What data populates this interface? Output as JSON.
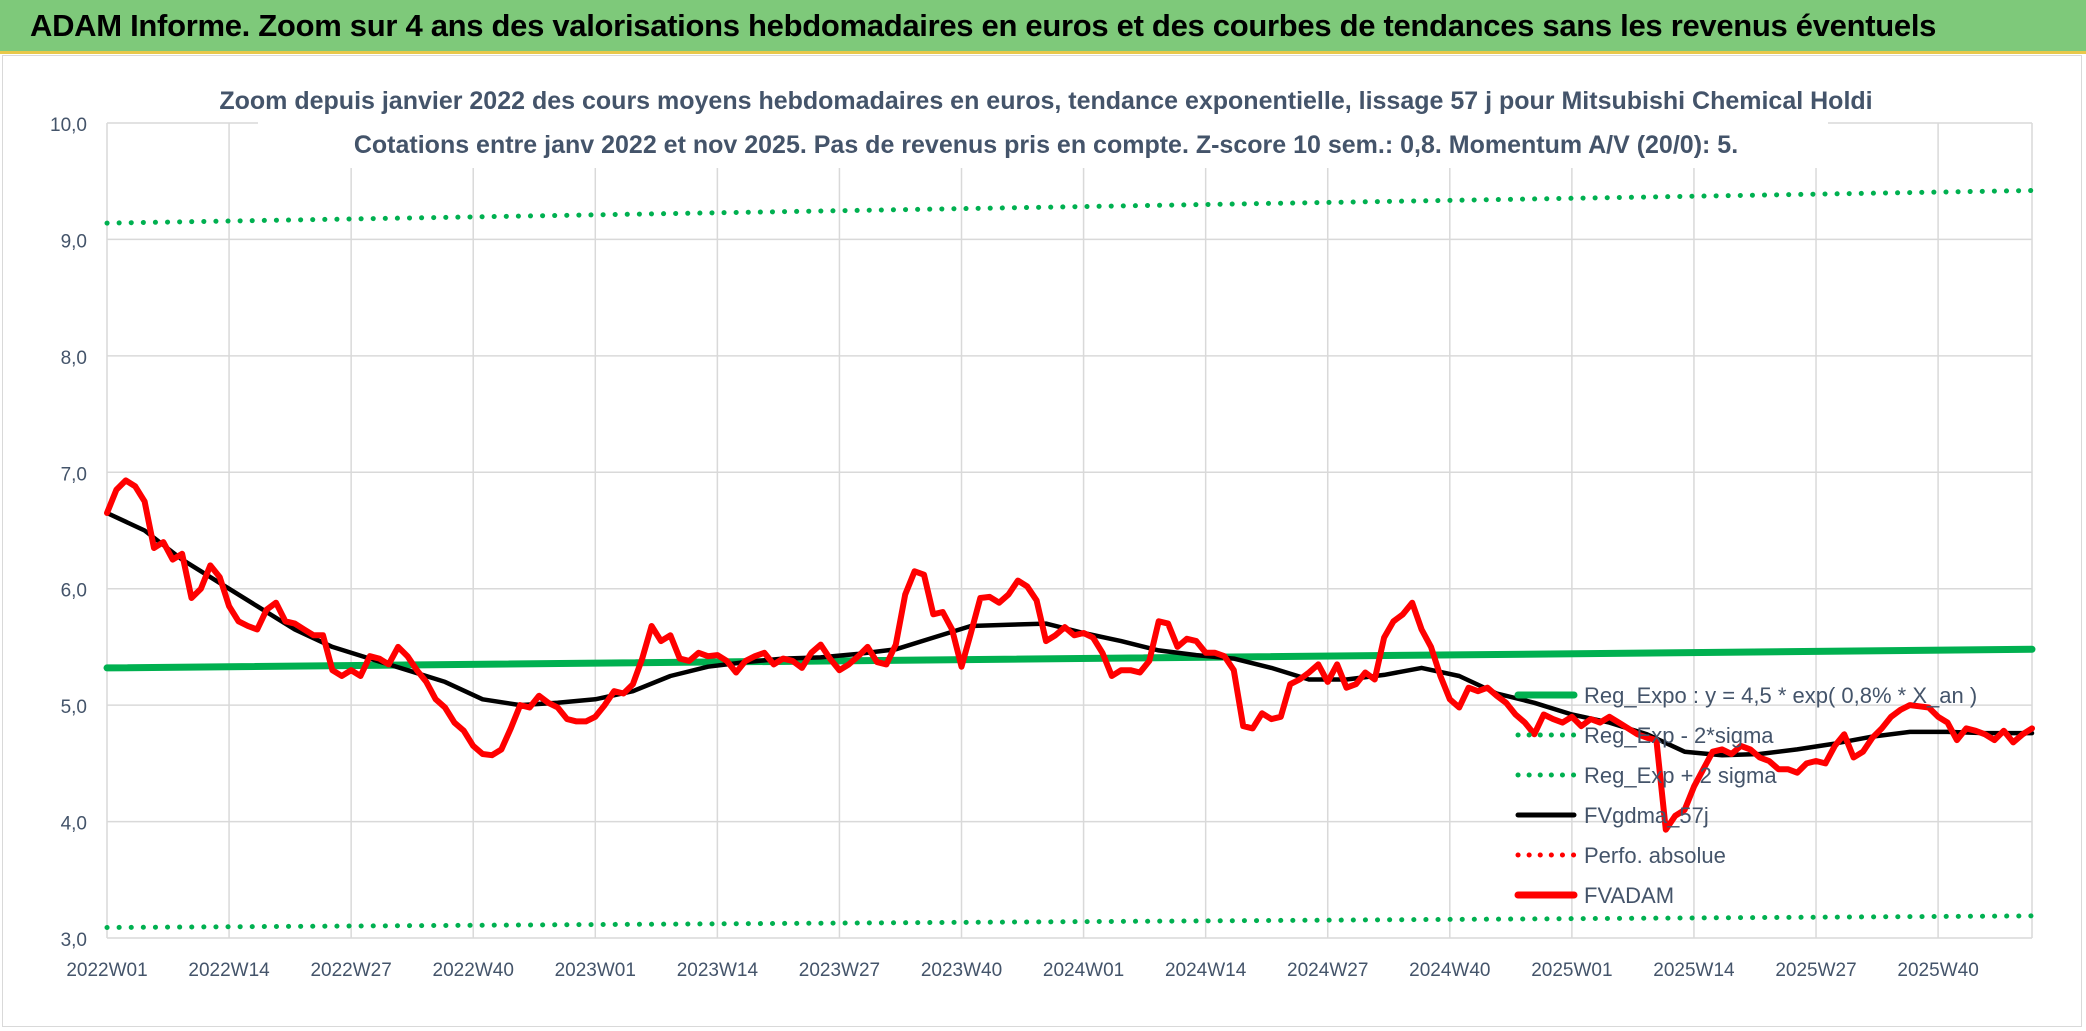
{
  "header": {
    "title": "ADAM Informe. Zoom sur 4 ans des valorisations hebdomadaires en euros et des courbes de tendances sans les revenus éventuels"
  },
  "colors": {
    "banner_bg": "#7ec97a",
    "green": "#00b050",
    "black": "#000000",
    "red": "#ff0000",
    "grid": "#d9d9d9",
    "text": "#44546a"
  },
  "chart_data": {
    "type": "line",
    "title_line1": "Zoom depuis janvier 2022 des cours moyens hebdomadaires en euros, tendance exponentielle, lissage 57 j pour Mitsubishi Chemical Holdi",
    "title_line2": "Cotations entre janv 2022 et nov 2025. Pas de revenus pris en compte. Z-score 10 sem.: 0,8. Momentum A/V (20/0): 5.",
    "xlabel": "",
    "ylabel": "",
    "ylim": [
      3.0,
      10.0
    ],
    "grid": true,
    "y_ticks": [
      "3,0",
      "4,0",
      "5,0",
      "6,0",
      "7,0",
      "8,0",
      "9,0",
      "10,0"
    ],
    "x_ticks": [
      "2022W01",
      "2022W14",
      "2022W27",
      "2022W40",
      "2023W01",
      "2023W14",
      "2023W27",
      "2023W40",
      "2024W01",
      "2024W14",
      "2024W27",
      "2024W40",
      "2025W01",
      "2025W14",
      "2025W27",
      "2025W40"
    ],
    "x_tick_weeks": [
      0,
      13,
      26,
      39,
      52,
      65,
      78,
      91,
      104,
      117,
      130,
      143,
      156,
      169,
      182,
      195
    ],
    "x_max_week": 205,
    "legend_position": "bottom-right",
    "series": [
      {
        "name": "Reg_Expo : y = 4,5 * exp( 0,8% *  X_an )",
        "style": "solid",
        "color": "#00b050",
        "points": [
          [
            0,
            5.32
          ],
          [
            205,
            5.48
          ]
        ]
      },
      {
        "name": "Reg_Exp - 2*sigma",
        "style": "dotted",
        "color": "#00b050",
        "points": [
          [
            0,
            3.09
          ],
          [
            205,
            3.19
          ]
        ]
      },
      {
        "name": "Reg_Exp + 2 sigma",
        "style": "dotted",
        "color": "#00b050",
        "points": [
          [
            0,
            9.14
          ],
          [
            205,
            9.42
          ]
        ]
      },
      {
        "name": "FVgdma_57j",
        "style": "solid",
        "color": "#000000",
        "points": [
          [
            0,
            6.65
          ],
          [
            4,
            6.5
          ],
          [
            8,
            6.25
          ],
          [
            12,
            6.05
          ],
          [
            16,
            5.85
          ],
          [
            20,
            5.65
          ],
          [
            24,
            5.5
          ],
          [
            28,
            5.4
          ],
          [
            32,
            5.3
          ],
          [
            36,
            5.2
          ],
          [
            40,
            5.05
          ],
          [
            44,
            5.0
          ],
          [
            48,
            5.02
          ],
          [
            52,
            5.05
          ],
          [
            56,
            5.12
          ],
          [
            60,
            5.25
          ],
          [
            64,
            5.33
          ],
          [
            68,
            5.37
          ],
          [
            72,
            5.4
          ],
          [
            76,
            5.41
          ],
          [
            80,
            5.44
          ],
          [
            84,
            5.48
          ],
          [
            88,
            5.58
          ],
          [
            92,
            5.68
          ],
          [
            96,
            5.69
          ],
          [
            100,
            5.7
          ],
          [
            104,
            5.62
          ],
          [
            108,
            5.55
          ],
          [
            112,
            5.47
          ],
          [
            116,
            5.43
          ],
          [
            120,
            5.4
          ],
          [
            124,
            5.32
          ],
          [
            128,
            5.22
          ],
          [
            132,
            5.22
          ],
          [
            136,
            5.26
          ],
          [
            140,
            5.32
          ],
          [
            144,
            5.25
          ],
          [
            148,
            5.1
          ],
          [
            152,
            5.02
          ],
          [
            156,
            4.92
          ],
          [
            160,
            4.85
          ],
          [
            164,
            4.75
          ],
          [
            168,
            4.6
          ],
          [
            172,
            4.57
          ],
          [
            176,
            4.58
          ],
          [
            180,
            4.62
          ],
          [
            184,
            4.67
          ],
          [
            188,
            4.73
          ],
          [
            192,
            4.77
          ],
          [
            196,
            4.77
          ],
          [
            200,
            4.76
          ],
          [
            205,
            4.76
          ]
        ]
      },
      {
        "name": "Perfo. absolue",
        "style": "dotted",
        "color": "#ff0000",
        "points": []
      },
      {
        "name": "FVADAM",
        "style": "solid",
        "color": "#ff0000",
        "points": [
          [
            0,
            6.65
          ],
          [
            1,
            6.85
          ],
          [
            2,
            6.93
          ],
          [
            3,
            6.88
          ],
          [
            4,
            6.75
          ],
          [
            5,
            6.35
          ],
          [
            6,
            6.4
          ],
          [
            7,
            6.25
          ],
          [
            8,
            6.3
          ],
          [
            9,
            5.92
          ],
          [
            10,
            6.0
          ],
          [
            11,
            6.2
          ],
          [
            12,
            6.1
          ],
          [
            13,
            5.85
          ],
          [
            14,
            5.72
          ],
          [
            15,
            5.68
          ],
          [
            16,
            5.65
          ],
          [
            17,
            5.82
          ],
          [
            18,
            5.88
          ],
          [
            19,
            5.72
          ],
          [
            20,
            5.7
          ],
          [
            21,
            5.65
          ],
          [
            22,
            5.6
          ],
          [
            23,
            5.6
          ],
          [
            24,
            5.3
          ],
          [
            25,
            5.25
          ],
          [
            26,
            5.3
          ],
          [
            27,
            5.25
          ],
          [
            28,
            5.42
          ],
          [
            29,
            5.4
          ],
          [
            30,
            5.35
          ],
          [
            31,
            5.5
          ],
          [
            32,
            5.42
          ],
          [
            33,
            5.3
          ],
          [
            34,
            5.2
          ],
          [
            35,
            5.05
          ],
          [
            36,
            4.98
          ],
          [
            37,
            4.85
          ],
          [
            38,
            4.78
          ],
          [
            39,
            4.65
          ],
          [
            40,
            4.58
          ],
          [
            41,
            4.57
          ],
          [
            42,
            4.62
          ],
          [
            43,
            4.8
          ],
          [
            44,
            5.0
          ],
          [
            45,
            4.98
          ],
          [
            46,
            5.08
          ],
          [
            47,
            5.02
          ],
          [
            48,
            4.98
          ],
          [
            49,
            4.88
          ],
          [
            50,
            4.86
          ],
          [
            51,
            4.86
          ],
          [
            52,
            4.9
          ],
          [
            53,
            5.0
          ],
          [
            54,
            5.12
          ],
          [
            55,
            5.1
          ],
          [
            56,
            5.18
          ],
          [
            57,
            5.4
          ],
          [
            58,
            5.68
          ],
          [
            59,
            5.55
          ],
          [
            60,
            5.6
          ],
          [
            61,
            5.4
          ],
          [
            62,
            5.38
          ],
          [
            63,
            5.45
          ],
          [
            64,
            5.42
          ],
          [
            65,
            5.43
          ],
          [
            66,
            5.38
          ],
          [
            67,
            5.28
          ],
          [
            68,
            5.38
          ],
          [
            69,
            5.42
          ],
          [
            70,
            5.45
          ],
          [
            71,
            5.35
          ],
          [
            72,
            5.4
          ],
          [
            73,
            5.38
          ],
          [
            74,
            5.32
          ],
          [
            75,
            5.45
          ],
          [
            76,
            5.52
          ],
          [
            77,
            5.4
          ],
          [
            78,
            5.3
          ],
          [
            79,
            5.35
          ],
          [
            80,
            5.42
          ],
          [
            81,
            5.5
          ],
          [
            82,
            5.37
          ],
          [
            83,
            5.35
          ],
          [
            84,
            5.52
          ],
          [
            85,
            5.95
          ],
          [
            86,
            6.15
          ],
          [
            87,
            6.12
          ],
          [
            88,
            5.78
          ],
          [
            89,
            5.8
          ],
          [
            90,
            5.65
          ],
          [
            91,
            5.33
          ],
          [
            92,
            5.62
          ],
          [
            93,
            5.92
          ],
          [
            94,
            5.93
          ],
          [
            95,
            5.88
          ],
          [
            96,
            5.95
          ],
          [
            97,
            6.07
          ],
          [
            98,
            6.02
          ],
          [
            99,
            5.9
          ],
          [
            100,
            5.55
          ],
          [
            101,
            5.6
          ],
          [
            102,
            5.67
          ],
          [
            103,
            5.6
          ],
          [
            104,
            5.62
          ],
          [
            105,
            5.58
          ],
          [
            106,
            5.45
          ],
          [
            107,
            5.25
          ],
          [
            108,
            5.3
          ],
          [
            109,
            5.3
          ],
          [
            110,
            5.28
          ],
          [
            111,
            5.38
          ],
          [
            112,
            5.72
          ],
          [
            113,
            5.7
          ],
          [
            114,
            5.5
          ],
          [
            115,
            5.57
          ],
          [
            116,
            5.55
          ],
          [
            117,
            5.45
          ],
          [
            118,
            5.45
          ],
          [
            119,
            5.42
          ],
          [
            120,
            5.3
          ],
          [
            121,
            4.82
          ],
          [
            122,
            4.8
          ],
          [
            123,
            4.93
          ],
          [
            124,
            4.88
          ],
          [
            125,
            4.9
          ],
          [
            126,
            5.18
          ],
          [
            127,
            5.22
          ],
          [
            128,
            5.28
          ],
          [
            129,
            5.35
          ],
          [
            130,
            5.2
          ],
          [
            131,
            5.35
          ],
          [
            132,
            5.15
          ],
          [
            133,
            5.18
          ],
          [
            134,
            5.28
          ],
          [
            135,
            5.22
          ],
          [
            136,
            5.58
          ],
          [
            137,
            5.72
          ],
          [
            138,
            5.78
          ],
          [
            139,
            5.88
          ],
          [
            140,
            5.65
          ],
          [
            141,
            5.5
          ],
          [
            142,
            5.25
          ],
          [
            143,
            5.05
          ],
          [
            144,
            4.98
          ],
          [
            145,
            5.15
          ],
          [
            146,
            5.12
          ],
          [
            147,
            5.15
          ],
          [
            148,
            5.08
          ],
          [
            149,
            5.02
          ],
          [
            150,
            4.92
          ],
          [
            151,
            4.85
          ],
          [
            152,
            4.75
          ],
          [
            153,
            4.92
          ],
          [
            154,
            4.88
          ],
          [
            155,
            4.85
          ],
          [
            156,
            4.9
          ],
          [
            157,
            4.82
          ],
          [
            158,
            4.88
          ],
          [
            159,
            4.85
          ],
          [
            160,
            4.9
          ],
          [
            161,
            4.85
          ],
          [
            162,
            4.8
          ],
          [
            163,
            4.75
          ],
          [
            164,
            4.72
          ],
          [
            165,
            4.7
          ],
          [
            166,
            3.93
          ],
          [
            167,
            4.05
          ],
          [
            168,
            4.1
          ],
          [
            169,
            4.3
          ],
          [
            170,
            4.45
          ],
          [
            171,
            4.6
          ],
          [
            172,
            4.62
          ],
          [
            173,
            4.58
          ],
          [
            174,
            4.65
          ],
          [
            175,
            4.62
          ],
          [
            176,
            4.55
          ],
          [
            177,
            4.52
          ],
          [
            178,
            4.45
          ],
          [
            179,
            4.45
          ],
          [
            180,
            4.42
          ],
          [
            181,
            4.5
          ],
          [
            182,
            4.52
          ],
          [
            183,
            4.5
          ],
          [
            184,
            4.65
          ],
          [
            185,
            4.75
          ],
          [
            186,
            4.55
          ],
          [
            187,
            4.6
          ],
          [
            188,
            4.72
          ],
          [
            189,
            4.8
          ],
          [
            190,
            4.9
          ],
          [
            191,
            4.96
          ],
          [
            192,
            5.0
          ],
          [
            193,
            4.99
          ],
          [
            194,
            4.98
          ],
          [
            195,
            4.9
          ],
          [
            196,
            4.85
          ],
          [
            197,
            4.7
          ],
          [
            198,
            4.8
          ],
          [
            199,
            4.78
          ],
          [
            200,
            4.75
          ],
          [
            201,
            4.7
          ],
          [
            202,
            4.78
          ],
          [
            203,
            4.68
          ],
          [
            204,
            4.75
          ],
          [
            205,
            4.8
          ]
        ]
      }
    ]
  }
}
